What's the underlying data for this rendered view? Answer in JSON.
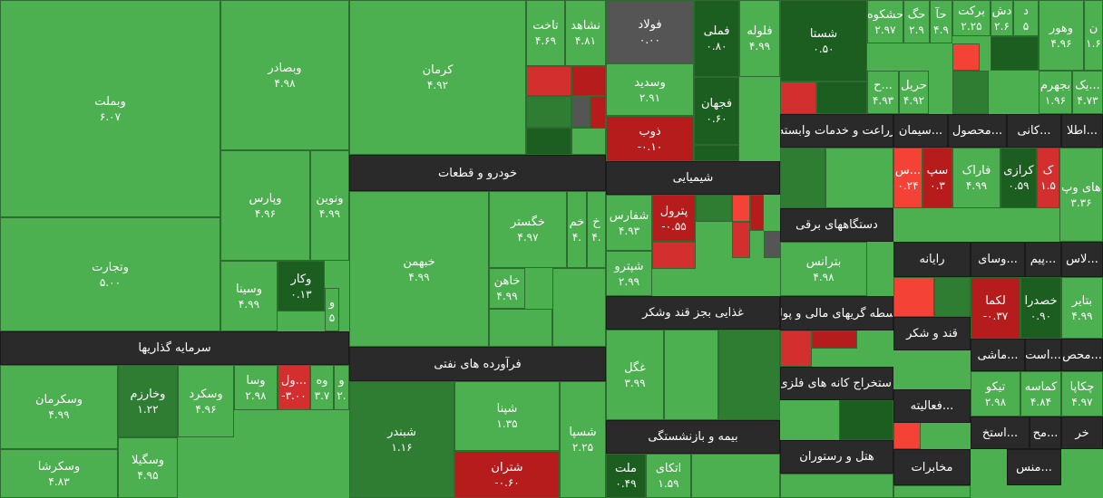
{
  "sectors": [
    {
      "label": "سرمایه گذاریها"
    },
    {
      "label": "خودرو و قطعات"
    },
    {
      "label": "فرآورده های نفتی"
    },
    {
      "label": "شیمیایی"
    },
    {
      "label": "غذایی بجز قند وشکر"
    },
    {
      "label": "بیمه و بازنشستگی"
    },
    {
      "label": "زراعت و خدمات وابسته"
    },
    {
      "label": "دستگاههای برقی"
    },
    {
      "label": "واسطه گریهای مالی و پولی"
    },
    {
      "label": "استخراج کانه های فلزی"
    },
    {
      "label": "هتل و رستوران"
    },
    {
      "label": "سیمان..."
    },
    {
      "label": "محصول..."
    },
    {
      "label": "کانی..."
    },
    {
      "label": "اطلا..."
    },
    {
      "label": "رایانه"
    },
    {
      "label": "وسای..."
    },
    {
      "label": "پیم..."
    },
    {
      "label": "لاس..."
    },
    {
      "label": "قند و شکر"
    },
    {
      "label": "ماشی..."
    },
    {
      "label": "است..."
    },
    {
      "label": "محص..."
    },
    {
      "label": "فعالیته..."
    },
    {
      "label": "استخ..."
    },
    {
      "label": "مح..."
    },
    {
      "label": "خر"
    },
    {
      "label": "مخابرات"
    },
    {
      "label": "منس..."
    }
  ],
  "tiles": [
    {
      "name": "وبملت",
      "change": "۶.۰۷"
    },
    {
      "name": "وتجارت",
      "change": "۵.۰۰"
    },
    {
      "name": "وبصادر",
      "change": "۴.۹۸"
    },
    {
      "name": "وپارس",
      "change": "۴.۹۶"
    },
    {
      "name": "ونوین",
      "change": "۴.۹۹"
    },
    {
      "name": "وسینا",
      "change": "۴.۹۹"
    },
    {
      "name": "وکار",
      "change": "۰.۱۳"
    },
    {
      "name": "و",
      "change": "۵"
    },
    {
      "name": "وسکرمان",
      "change": "۴.۹۹"
    },
    {
      "name": "وسکرشا",
      "change": "۴.۸۳"
    },
    {
      "name": "وخارزم",
      "change": "۱.۲۲"
    },
    {
      "name": "وسگیلا",
      "change": "۴.۹۵"
    },
    {
      "name": "وسکرد",
      "change": "۴.۹۶"
    },
    {
      "name": "وسا",
      "change": "۲.۹۸"
    },
    {
      "name": "ول...",
      "change": "-۳.۰۰"
    },
    {
      "name": "وه",
      "change": "۳.۷"
    },
    {
      "name": "و",
      "change": "۲."
    },
    {
      "name": "کرمان",
      "change": "۴.۹۲"
    },
    {
      "name": "تاخت",
      "change": "۴.۶۹"
    },
    {
      "name": "نشاهد",
      "change": "۴.۸۱"
    },
    {
      "name": "خبهمن",
      "change": "۴.۹۹"
    },
    {
      "name": "خگستر",
      "change": "۴.۹۷"
    },
    {
      "name": "خم",
      "change": "۴."
    },
    {
      "name": "خ",
      "change": "۴."
    },
    {
      "name": "خاهن",
      "change": "۴.۹۹"
    },
    {
      "name": "شبندر",
      "change": "۱.۱۶"
    },
    {
      "name": "شپنا",
      "change": "۱.۳۵"
    },
    {
      "name": "شتران",
      "change": "-۰.۶۰"
    },
    {
      "name": "شسپا",
      "change": "۲.۲۵"
    },
    {
      "name": "فولاد",
      "change": "۰.۰۰"
    },
    {
      "name": "فملی",
      "change": "۰.۸۰"
    },
    {
      "name": "فلوله",
      "change": "۴.۹۹"
    },
    {
      "name": "وسدید",
      "change": "۲.۹۱"
    },
    {
      "name": "فجهان",
      "change": "۰.۶۰"
    },
    {
      "name": "ذوب",
      "change": "-۰.۱۰"
    },
    {
      "name": "شفارس",
      "change": "۴.۹۳"
    },
    {
      "name": "پترول",
      "change": "-۰.۵۵"
    },
    {
      "name": "شپترو",
      "change": "۲.۹۹"
    },
    {
      "name": "غگل",
      "change": "۳.۹۹"
    },
    {
      "name": "ملت",
      "change": "۰.۴۹"
    },
    {
      "name": "اتکای",
      "change": "۱.۵۹"
    },
    {
      "name": "شستا",
      "change": "۰.۵۰"
    },
    {
      "name": "بترانس",
      "change": "۴.۹۸"
    },
    {
      "name": "حشکوه",
      "change": "۲.۹۷"
    },
    {
      "name": "حگ",
      "change": "۲.۹"
    },
    {
      "name": "حآ",
      "change": "۴.۹"
    },
    {
      "name": "برکت",
      "change": "۲.۲۵"
    },
    {
      "name": "دش",
      "change": "۲.۶"
    },
    {
      "name": "د",
      "change": "۵"
    },
    {
      "name": "وهور",
      "change": "۴.۹۶"
    },
    {
      "name": "ن",
      "change": "۱.۶"
    },
    {
      "name": "ح...",
      "change": "۴.۹۳"
    },
    {
      "name": "حریل",
      "change": "۴.۹۲"
    },
    {
      "name": "بجهرم",
      "change": "۱.۹۶"
    },
    {
      "name": "یک...",
      "change": "۴.۷۳"
    },
    {
      "name": "س...",
      "change": "۰.۲۴"
    },
    {
      "name": "سپ",
      "change": "۰.۳"
    },
    {
      "name": "فاراک",
      "change": "۴.۹۹"
    },
    {
      "name": "کرازی",
      "change": "۰.۵۹"
    },
    {
      "name": "ک",
      "change": "۱.۵"
    },
    {
      "name": "های وپ",
      "change": "۳.۳۶"
    },
    {
      "name": "لکما",
      "change": "-۰.۳۷"
    },
    {
      "name": "خصدرا",
      "change": "۰.۹۰"
    },
    {
      "name": "بتایر",
      "change": "۴.۹۹"
    },
    {
      "name": "تیکو",
      "change": "۲.۹۸"
    },
    {
      "name": "کماسه",
      "change": "۴.۸۴"
    },
    {
      "name": "چکاپا",
      "change": "۴.۹۷"
    }
  ]
}
